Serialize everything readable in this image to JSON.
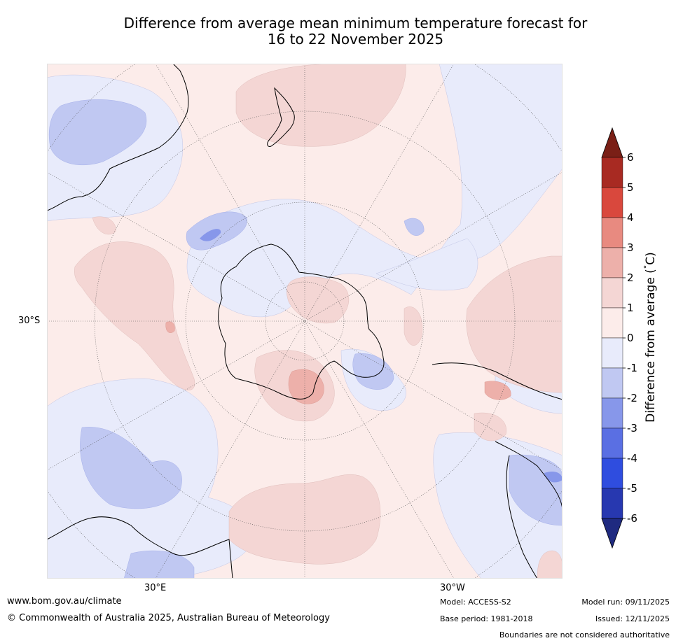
{
  "title_line1": "Difference from average mean minimum temperature forecast for",
  "title_line2": "16 to 22 November 2025",
  "map": {
    "projection": "South polar stereographic",
    "lat_label": "30°S",
    "lon_labels": [
      "30°E",
      "30°W"
    ]
  },
  "colorbar": {
    "label": "Difference from average (°C)",
    "label_prefix": "Difference from average (",
    "label_degree": "°",
    "label_suffix": "C)",
    "ticks": [
      "6",
      "5",
      "4",
      "3",
      "2",
      "1",
      "0",
      "-1",
      "-2",
      "-3",
      "-4",
      "-5",
      "-6"
    ],
    "colors": {
      "above_max": "#7a1f16",
      "gt5": "#a82a22",
      "4to5": "#d9483d",
      "3to4": "#e88a80",
      "2to3": "#edb0aa",
      "1to2": "#f4d6d4",
      "0to1": "#fcecea",
      "m1to0": "#e8ebfb",
      "m2tom1": "#c0c8f2",
      "m3tom2": "#8797ea",
      "m4tom3": "#5a6fe3",
      "m5tom4": "#2f4ddf",
      "m6tom5": "#2738b0",
      "below_min": "#1f2a80"
    }
  },
  "footer": {
    "website": "www.bom.gov.au/climate",
    "copyright": "© Commonwealth of Australia 2025, Australian Bureau of Meteorology",
    "model": "Model: ACCESS-S2",
    "base_period": "Base period: 1981-2018",
    "model_run": "Model run: 09/11/2025",
    "issued": "Issued: 12/11/2025",
    "disclaimer": "Boundaries are not considered authoritative"
  }
}
